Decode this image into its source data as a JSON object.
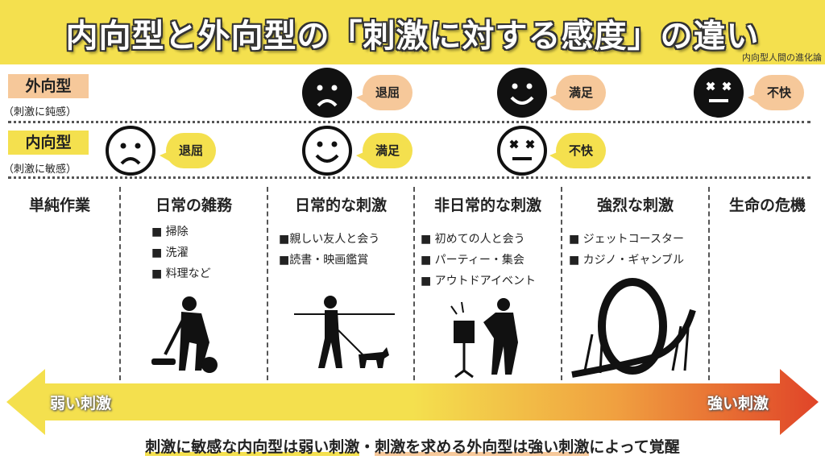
{
  "title": "内向型と外向型の「刺激に対する感度」の違い",
  "watermark": "内向型人間の進化論",
  "extrovert": {
    "label": "外向型",
    "sub": "（刺激に鈍感）",
    "reactions": [
      "退屈",
      "満足",
      "不快"
    ]
  },
  "introvert": {
    "label": "内向型",
    "sub": "（刺激に敏感）",
    "reactions": [
      "退屈",
      "満足",
      "不快"
    ]
  },
  "categories": [
    {
      "title": "単純作業",
      "items": []
    },
    {
      "title": "日常の雑務",
      "items": [
        "■ 掃除",
        "■ 洗濯",
        "■ 料理など"
      ]
    },
    {
      "title": "日常的な刺激",
      "items": [
        "■親しい友人と会う",
        "■読書・映画鑑賞"
      ]
    },
    {
      "title": "非日常的な刺激",
      "items": [
        "■ 初めての人と会う",
        "■ パーティー・集会",
        "■ アウトドアイベント"
      ]
    },
    {
      "title": "強烈な刺激",
      "items": [
        "■ ジェットコースター",
        "■ カジノ・ギャンブル"
      ]
    },
    {
      "title": "生命の危機",
      "items": []
    }
  ],
  "arrow": {
    "left": "弱い刺激",
    "right": "強い刺激",
    "colors": [
      "#f4e04e",
      "#f0a040",
      "#e04428"
    ]
  },
  "bottom": {
    "part1": "刺激に敏感な内向型は弱い刺激",
    "sep": "・",
    "part2": "刺激を求める外向型は強い刺激",
    "part3": "によって覚醒"
  },
  "colors": {
    "yellow": "#f4e04e",
    "peach": "#f6c89a"
  }
}
